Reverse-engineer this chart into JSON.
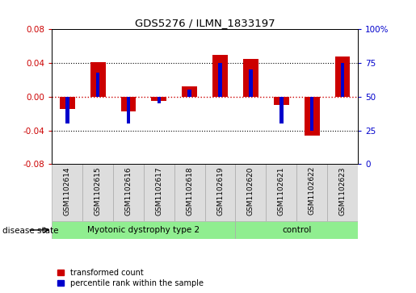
{
  "title": "GDS5276 / ILMN_1833197",
  "samples": [
    "GSM1102614",
    "GSM1102615",
    "GSM1102616",
    "GSM1102617",
    "GSM1102618",
    "GSM1102619",
    "GSM1102620",
    "GSM1102621",
    "GSM1102622",
    "GSM1102623"
  ],
  "red_values": [
    -0.015,
    0.041,
    -0.017,
    -0.005,
    0.012,
    0.05,
    0.045,
    -0.01,
    -0.046,
    0.048
  ],
  "blue_pct": [
    30,
    68,
    30,
    45,
    55,
    75,
    70,
    30,
    25,
    75
  ],
  "groups": [
    {
      "label": "Myotonic dystrophy type 2",
      "start": 0,
      "end": 5,
      "color": "#90EE90"
    },
    {
      "label": "control",
      "start": 6,
      "end": 9,
      "color": "#90EE90"
    }
  ],
  "ylim_left": [
    -0.08,
    0.08
  ],
  "ylim_right": [
    0,
    100
  ],
  "yticks_left": [
    -0.08,
    -0.04,
    0.0,
    0.04,
    0.08
  ],
  "yticks_right": [
    0,
    25,
    50,
    75,
    100
  ],
  "bar_width": 0.5,
  "blue_bar_width": 0.12,
  "left_tick_color": "#cc0000",
  "right_tick_color": "#0000cc",
  "legend_red": "transformed count",
  "legend_blue": "percentile rank within the sample",
  "disease_label": "disease state",
  "zero_line_color": "#cc0000",
  "dotted_line_color": "#000000",
  "sample_cell_color": "#dddddd",
  "sample_cell_edge": "#aaaaaa"
}
